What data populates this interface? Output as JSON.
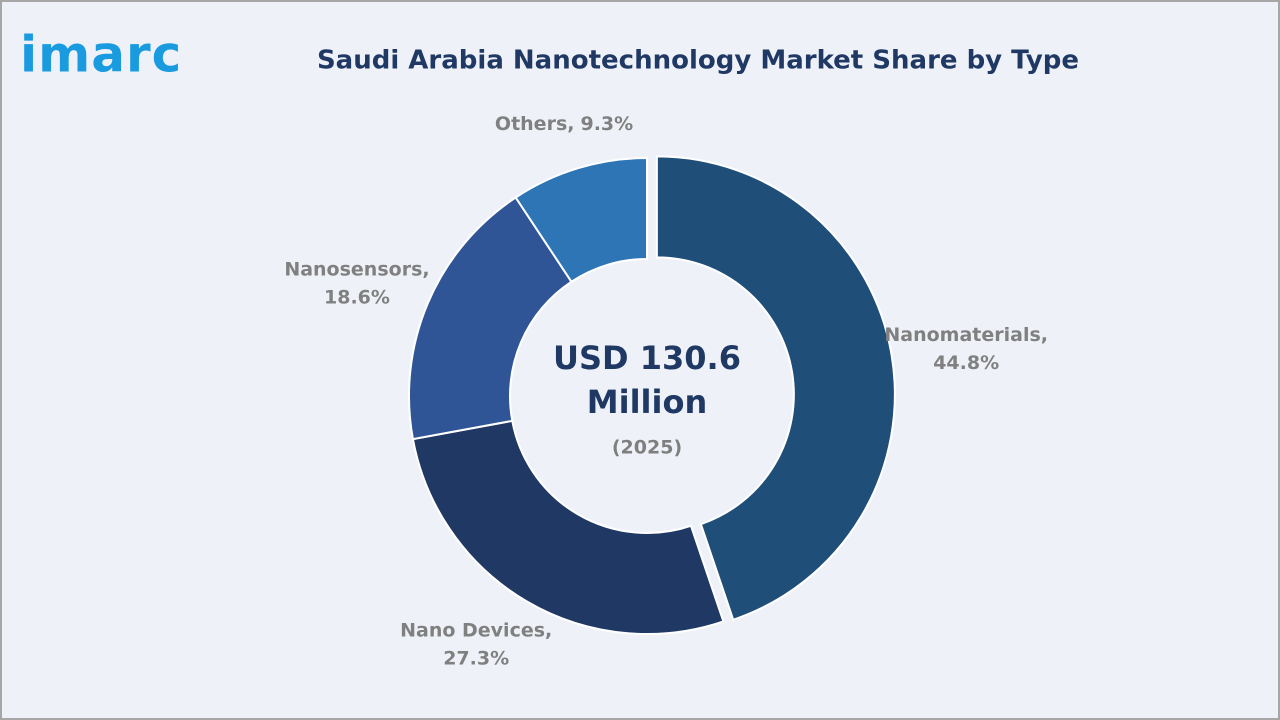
{
  "logo": "imarc",
  "chart_data": {
    "type": "donut",
    "title": "Saudi Arabia Nanotechnology Market Share by Type",
    "categories": [
      "Nanomaterials,",
      "Nano Devices,",
      "Nanosensors,",
      "Others,"
    ],
    "values": [
      44.8,
      27.3,
      18.6,
      9.3
    ],
    "value_labels": [
      "44.8%",
      "27.3%",
      "18.6%",
      "9.3%"
    ],
    "colors": [
      "#1f4e79",
      "#203864",
      "#2f5597",
      "#2e75b6"
    ],
    "center_text": [
      "USD 130.6",
      "Million"
    ],
    "center_subtext": "(2025)"
  }
}
